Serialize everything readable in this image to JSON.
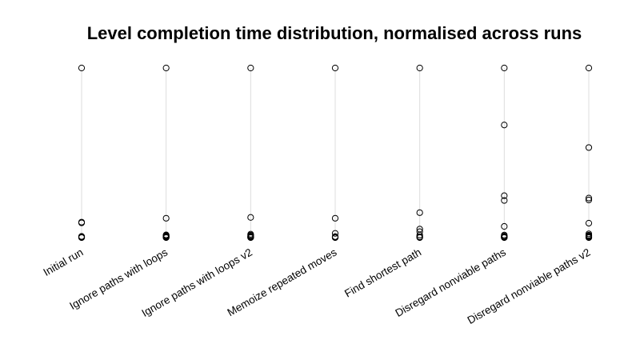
{
  "chart_data": {
    "type": "scatter",
    "title": "Level completion time distribution, normalised across runs",
    "xlabel": "",
    "ylabel": "",
    "ylim": [
      0,
      1
    ],
    "grid": false,
    "categories": [
      "Initial run",
      "Ignore paths with loops",
      "Ignore paths with loops v2",
      "Memoize repeated moves",
      "Find shortest path",
      "Disregard nonviable paths",
      "Disregard nonviable paths v2"
    ],
    "points": [
      [
        1.0,
        0.091,
        0.087,
        0.007,
        0.005,
        0.003,
        0.002,
        0.001,
        0.0
      ],
      [
        1.0,
        0.114,
        0.016,
        0.012,
        0.008,
        0.005,
        0.003,
        0.001,
        0.0
      ],
      [
        1.0,
        0.119,
        0.02,
        0.014,
        0.009,
        0.006,
        0.003,
        0.001,
        0.0
      ],
      [
        1.0,
        0.114,
        0.025,
        0.006,
        0.004,
        0.002,
        0.001,
        0.0
      ],
      [
        1.0,
        0.147,
        0.05,
        0.035,
        0.015,
        0.005,
        0.002,
        0.0
      ],
      [
        1.0,
        0.664,
        0.247,
        0.219,
        0.066,
        0.015,
        0.009,
        0.005,
        0.003,
        0.001,
        0.0
      ],
      [
        1.0,
        0.531,
        0.233,
        0.222,
        0.085,
        0.022,
        0.014,
        0.01,
        0.006,
        0.003,
        0.001,
        0.0
      ]
    ]
  }
}
